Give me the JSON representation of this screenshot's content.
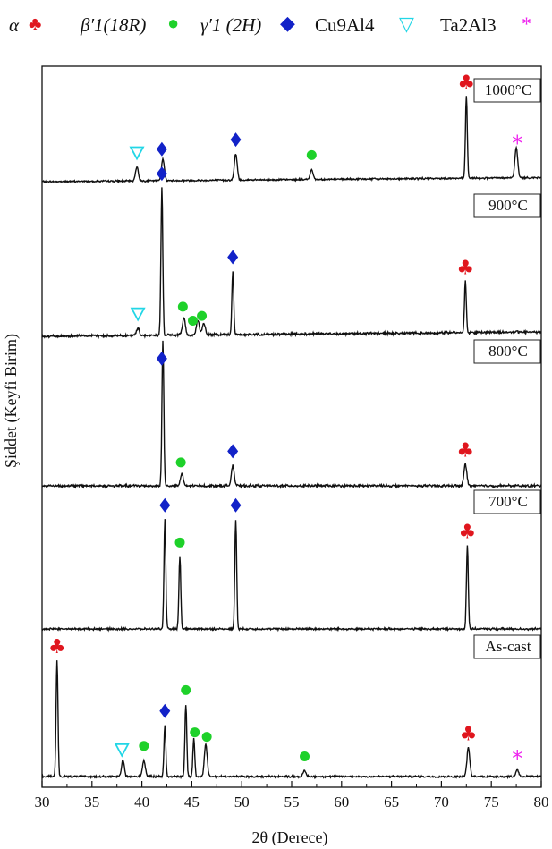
{
  "legend": {
    "alpha": "α",
    "beta": "β′1(18R)",
    "gamma": "γ′1 (2H)",
    "cu9al4": "Cu9Al4",
    "ta2al3": "Ta2Al3"
  },
  "colors": {
    "alpha": "#e0161e",
    "beta": "#1ed12a",
    "gamma": "#1222c8",
    "cu9al4": "#22d6e6",
    "ta2al3": "#ee22ee",
    "line": "#111111"
  },
  "chart_data": {
    "type": "line",
    "xlabel": "2θ (Derece)",
    "ylabel": "Şiddet (Keyfi Birim)",
    "xlim": [
      30,
      80
    ],
    "xticks": [
      30,
      35,
      40,
      45,
      50,
      55,
      60,
      65,
      70,
      75,
      80
    ],
    "grid": false,
    "series": [
      {
        "name": "1000°C",
        "baseline": 0.04,
        "peaks": [
          [
            39.5,
            0.14
          ],
          [
            42.1,
            0.22
          ],
          [
            49.4,
            0.26
          ],
          [
            57.0,
            0.1
          ],
          [
            72.5,
            0.82
          ],
          [
            77.5,
            0.3
          ]
        ],
        "markers": [
          {
            "phase": "cu9al4",
            "x": 39.5
          },
          {
            "phase": "gamma",
            "x": 42.0
          },
          {
            "phase": "gamma",
            "x": 49.4
          },
          {
            "phase": "beta",
            "x": 57.0
          },
          {
            "phase": "alpha",
            "x": 72.5
          },
          {
            "phase": "ta2al3",
            "x": 77.6
          }
        ]
      },
      {
        "name": "900°C",
        "baseline": 0.03,
        "peaks": [
          [
            39.6,
            0.05
          ],
          [
            42.0,
            0.98
          ],
          [
            44.2,
            0.12
          ],
          [
            45.6,
            0.1
          ],
          [
            46.2,
            0.08
          ],
          [
            49.1,
            0.42
          ],
          [
            72.4,
            0.34
          ]
        ],
        "markers": [
          {
            "phase": "cu9al4",
            "x": 39.6
          },
          {
            "phase": "gamma",
            "x": 42.0
          },
          {
            "phase": "beta",
            "x": 44.1
          },
          {
            "phase": "beta",
            "x": 45.1
          },
          {
            "phase": "beta",
            "x": 46.0
          },
          {
            "phase": "gamma",
            "x": 49.1
          },
          {
            "phase": "alpha",
            "x": 72.4
          }
        ]
      },
      {
        "name": "800°C",
        "baseline": 0.0,
        "peaks": [
          [
            42.1,
            1.0
          ],
          [
            44.0,
            0.08
          ],
          [
            49.1,
            0.14
          ],
          [
            72.4,
            0.15
          ]
        ],
        "markers": [
          {
            "phase": "gamma",
            "x": 42.0
          },
          {
            "phase": "beta",
            "x": 43.9
          },
          {
            "phase": "gamma",
            "x": 49.1
          },
          {
            "phase": "alpha",
            "x": 72.4
          }
        ]
      },
      {
        "name": "700°C",
        "baseline": 0.0,
        "peaks": [
          [
            42.3,
            0.94
          ],
          [
            43.8,
            0.62
          ],
          [
            49.4,
            0.94
          ],
          [
            72.6,
            0.72
          ]
        ],
        "markers": [
          {
            "phase": "gamma",
            "x": 42.3
          },
          {
            "phase": "beta",
            "x": 43.8
          },
          {
            "phase": "gamma",
            "x": 49.4
          },
          {
            "phase": "alpha",
            "x": 72.6
          }
        ]
      },
      {
        "name": "As-cast",
        "baseline": 0.0,
        "peaks": [
          [
            31.5,
            1.0
          ],
          [
            38.1,
            0.14
          ],
          [
            40.2,
            0.14
          ],
          [
            42.3,
            0.44
          ],
          [
            44.4,
            0.62
          ],
          [
            45.2,
            0.33
          ],
          [
            46.4,
            0.28
          ],
          [
            56.3,
            0.05
          ],
          [
            72.7,
            0.25
          ],
          [
            77.6,
            0.06
          ]
        ],
        "markers": [
          {
            "phase": "alpha",
            "x": 31.5
          },
          {
            "phase": "cu9al4",
            "x": 38.0
          },
          {
            "phase": "beta",
            "x": 40.2
          },
          {
            "phase": "gamma",
            "x": 42.3
          },
          {
            "phase": "beta",
            "x": 44.4
          },
          {
            "phase": "beta",
            "x": 45.3
          },
          {
            "phase": "beta",
            "x": 46.5
          },
          {
            "phase": "beta",
            "x": 56.3
          },
          {
            "phase": "alpha",
            "x": 72.7
          },
          {
            "phase": "ta2al3",
            "x": 77.6
          }
        ]
      }
    ]
  }
}
